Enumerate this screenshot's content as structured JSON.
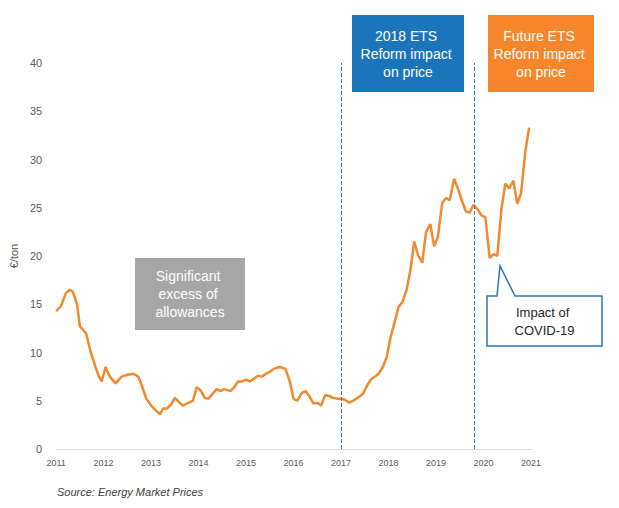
{
  "chart_data": {
    "type": "line",
    "y_label": "€/ton",
    "source": "Source: Energy Market Prices",
    "color": "#f08a2c",
    "x": [
      2011.0,
      2011.1,
      2011.21,
      2011.29,
      2011.35,
      2011.44,
      2011.5,
      2011.63,
      2011.73,
      2011.83,
      2011.9,
      2011.96,
      2012.04,
      2012.13,
      2012.25,
      2012.38,
      2012.5,
      2012.63,
      2012.73,
      2012.81,
      2012.9,
      2013.0,
      2013.1,
      2013.19,
      2013.25,
      2013.33,
      2013.42,
      2013.5,
      2013.58,
      2013.67,
      2013.79,
      2013.88,
      2013.96,
      2014.04,
      2014.13,
      2014.21,
      2014.29,
      2014.38,
      2014.46,
      2014.54,
      2014.67,
      2014.75,
      2014.83,
      2014.92,
      2015.0,
      2015.08,
      2015.17,
      2015.25,
      2015.33,
      2015.42,
      2015.5,
      2015.58,
      2015.71,
      2015.83,
      2015.92,
      2016.0,
      2016.08,
      2016.17,
      2016.25,
      2016.33,
      2016.42,
      2016.5,
      2016.58,
      2016.67,
      2016.75,
      2016.83,
      2016.94,
      2017.0,
      2017.08,
      2017.17,
      2017.25,
      2017.35,
      2017.46,
      2017.54,
      2017.63,
      2017.71,
      2017.79,
      2017.88,
      2017.96,
      2018.04,
      2018.13,
      2018.21,
      2018.29,
      2018.38,
      2018.46,
      2018.54,
      2018.63,
      2018.71,
      2018.79,
      2018.88,
      2018.96,
      2019.04,
      2019.13,
      2019.21,
      2019.29,
      2019.38,
      2019.46,
      2019.54,
      2019.63,
      2019.71,
      2019.79,
      2019.88,
      2019.96,
      2020.04,
      2020.13,
      2020.21,
      2020.29,
      2020.38,
      2020.46,
      2020.54,
      2020.63,
      2020.71,
      2020.79,
      2020.88,
      2020.96
    ],
    "values": [
      14.3,
      14.8,
      16.2,
      16.5,
      16.3,
      15.0,
      12.7,
      12.0,
      10.0,
      8.5,
      7.5,
      7.0,
      8.5,
      7.5,
      6.8,
      7.5,
      7.7,
      7.8,
      7.5,
      6.5,
      5.2,
      4.5,
      4.0,
      3.6,
      4.2,
      4.2,
      4.6,
      5.3,
      4.9,
      4.5,
      4.8,
      5.0,
      6.4,
      6.1,
      5.3,
      5.2,
      5.7,
      6.2,
      6.0,
      6.2,
      6.0,
      6.4,
      7.0,
      7.0,
      7.2,
      7.0,
      7.3,
      7.6,
      7.5,
      7.8,
      8.0,
      8.3,
      8.5,
      8.3,
      7.0,
      5.2,
      5.0,
      5.8,
      6.0,
      5.5,
      4.7,
      4.8,
      4.5,
      5.6,
      5.5,
      5.3,
      5.2,
      5.2,
      5.1,
      4.8,
      5.0,
      5.3,
      5.7,
      6.5,
      7.2,
      7.5,
      7.8,
      8.5,
      9.5,
      11.5,
      13.2,
      14.7,
      15.2,
      16.5,
      18.5,
      21.5,
      20.0,
      19.3,
      22.5,
      23.3,
      21.0,
      22.0,
      25.5,
      26.0,
      25.8,
      28.0,
      27.0,
      25.8,
      24.6,
      24.5,
      25.3,
      24.8,
      24.2,
      24.0,
      19.8,
      20.2,
      20.0,
      25.0,
      27.5,
      27.0,
      27.8,
      25.4,
      26.5,
      30.8,
      33.3
    ],
    "xlim": [
      2011,
      2021
    ],
    "xticks": [
      2011,
      2012,
      2013,
      2014,
      2015,
      2016,
      2017,
      2018,
      2019,
      2020,
      2021
    ],
    "ylim": [
      0,
      40
    ],
    "yticks": [
      0,
      5,
      10,
      15,
      20,
      25,
      30,
      35,
      40
    ],
    "grid": false,
    "reference_lines": [
      2017,
      2019.81
    ],
    "annotations": [
      "Significant excess of allowances",
      "2018 ETS Reform impact on price",
      "Future ETS Reform impact on price",
      "Impact of COVID-19"
    ]
  }
}
